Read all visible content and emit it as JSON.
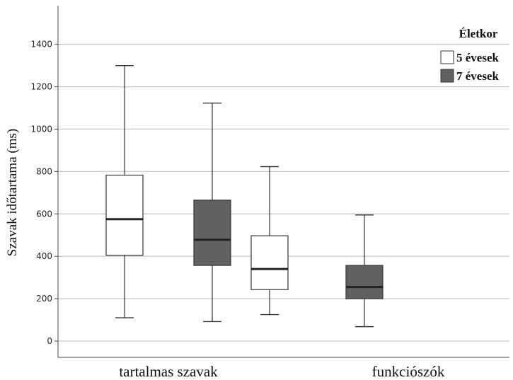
{
  "chart_data": {
    "type": "boxplot",
    "ylabel": "Szavak időtartama (ms)",
    "ylim": [
      -70,
      1570
    ],
    "yticks": [
      0,
      200,
      400,
      600,
      800,
      1000,
      1200,
      1400
    ],
    "grid": "horizontal",
    "categories": [
      "tartalmas szavak",
      "funkciószók"
    ],
    "legend": {
      "title": "Életkor",
      "position": "top-right"
    },
    "series": [
      {
        "name": "5 évesek",
        "color": "#ffffff",
        "boxes": [
          {
            "min": 110,
            "q1": 405,
            "median": 575,
            "q3": 783,
            "max": 1300
          },
          {
            "min": 125,
            "q1": 243,
            "median": 340,
            "q3": 497,
            "max": 823
          }
        ]
      },
      {
        "name": "7 évesek",
        "color": "#616161",
        "boxes": [
          {
            "min": 92,
            "q1": 357,
            "median": 478,
            "q3": 665,
            "max": 1123
          },
          {
            "min": 68,
            "q1": 200,
            "median": 255,
            "q3": 357,
            "max": 595
          }
        ]
      }
    ]
  }
}
